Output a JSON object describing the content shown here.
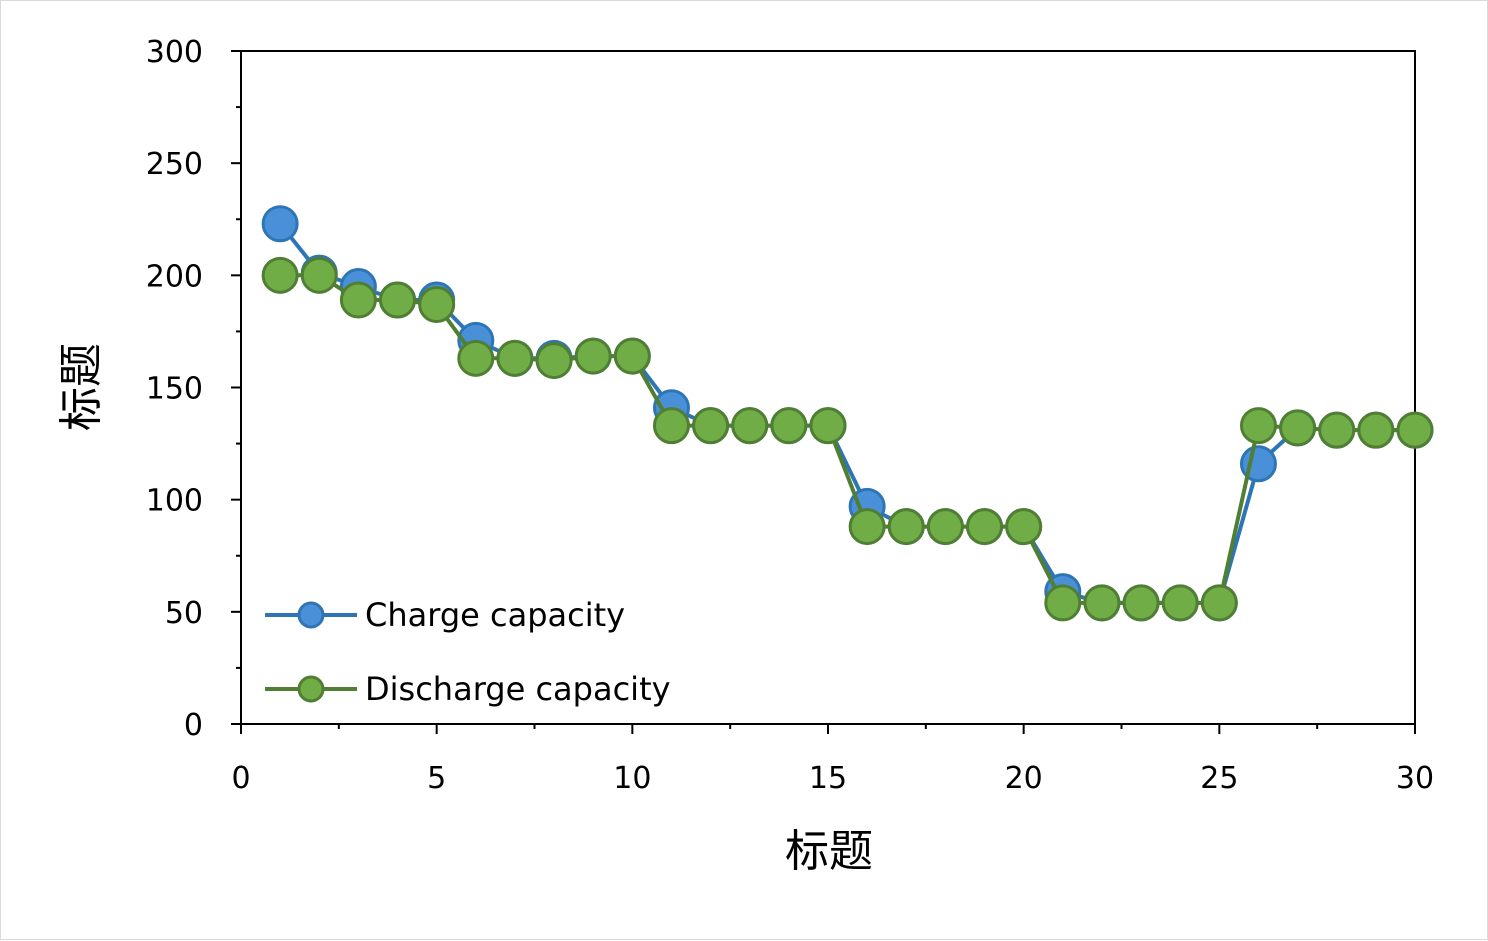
{
  "chart_data": {
    "type": "line",
    "title": "",
    "xlabel": "标题",
    "ylabel": "标题",
    "xlim": [
      0,
      30
    ],
    "ylim": [
      0,
      300
    ],
    "x_ticks": [
      0,
      5,
      10,
      15,
      20,
      25,
      30
    ],
    "y_ticks": [
      0,
      50,
      100,
      150,
      200,
      250,
      300
    ],
    "grid": false,
    "legend_position": "bottom-left",
    "x": [
      1,
      2,
      3,
      4,
      5,
      6,
      7,
      8,
      9,
      10,
      11,
      12,
      13,
      14,
      15,
      16,
      17,
      18,
      19,
      20,
      21,
      22,
      23,
      24,
      25,
      26,
      27,
      28,
      29,
      30
    ],
    "series": [
      {
        "name": "Charge capacity",
        "color": "#4a90d9",
        "stroke": "#2e75b6",
        "values": [
          223,
          201,
          195,
          189,
          189,
          171,
          163,
          163,
          164,
          164,
          141,
          133,
          133,
          133,
          133,
          97,
          88,
          88,
          88,
          88,
          59,
          54,
          54,
          54,
          54,
          116,
          132,
          131,
          131,
          131
        ]
      },
      {
        "name": "Discharge capacity",
        "color": "#70ad47",
        "stroke": "#507e32",
        "values": [
          200,
          200,
          189,
          189,
          187,
          163,
          163,
          162,
          164,
          164,
          133,
          133,
          133,
          133,
          133,
          88,
          88,
          88,
          88,
          88,
          54,
          54,
          54,
          54,
          54,
          133,
          132,
          131,
          131,
          131
        ]
      }
    ]
  }
}
